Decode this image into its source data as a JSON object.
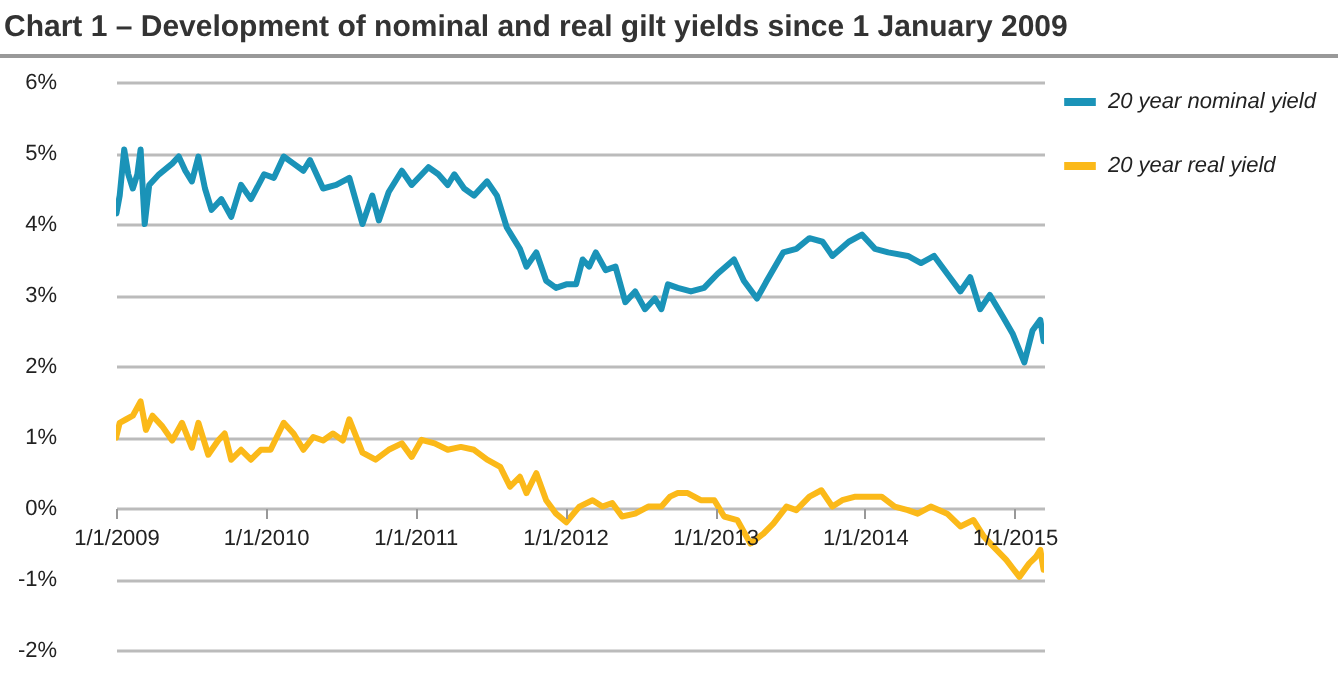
{
  "chart_data": {
    "type": "line",
    "title": "Chart 1 – Development of nominal and real gilt yields since 1 January 2009",
    "xlim": [
      "2009-01-01",
      "2015-03-14"
    ],
    "xticks": [
      {
        "value": "2009-01-01",
        "label": "1/1/2009"
      },
      {
        "value": "2010-01-01",
        "label": "1/1/2010"
      },
      {
        "value": "2011-01-01",
        "label": "1/1/2011"
      },
      {
        "value": "2012-01-01",
        "label": "1/1/2012"
      },
      {
        "value": "2013-01-01",
        "label": "1/1/2013"
      },
      {
        "value": "2014-01-01",
        "label": "1/1/2014"
      },
      {
        "value": "2015-01-01",
        "label": "1/1/2015"
      }
    ],
    "ylim": [
      -2,
      6
    ],
    "yticks": [
      {
        "value": -2,
        "label": "-2%"
      },
      {
        "value": -1,
        "label": "-1%"
      },
      {
        "value": 0,
        "label": "0%"
      },
      {
        "value": 1,
        "label": "1%"
      },
      {
        "value": 2,
        "label": "2%"
      },
      {
        "value": 3,
        "label": "3%"
      },
      {
        "value": 4,
        "label": "4%"
      },
      {
        "value": 5,
        "label": "5%"
      },
      {
        "value": 6,
        "label": "6%"
      }
    ],
    "grid": "y",
    "legend": "top right",
    "line_style": "solid",
    "series": [
      {
        "name": "20 year nominal yield",
        "color": "#1a93b8",
        "x": [
          "2009-01-02",
          "2009-01-10",
          "2009-01-21",
          "2009-01-31",
          "2009-02-11",
          "2009-02-22",
          "2009-03-02",
          "2009-03-12",
          "2009-03-23",
          "2009-04-16",
          "2009-05-18",
          "2009-06-03",
          "2009-06-19",
          "2009-07-05",
          "2009-07-21",
          "2009-08-06",
          "2009-08-22",
          "2009-09-15",
          "2009-10-09",
          "2009-11-02",
          "2009-11-26",
          "2009-12-28",
          "2010-01-21",
          "2010-02-14",
          "2010-03-10",
          "2010-04-03",
          "2010-04-19",
          "2010-05-21",
          "2010-06-22",
          "2010-07-24",
          "2010-08-25",
          "2010-09-18",
          "2010-10-04",
          "2010-10-28",
          "2010-11-29",
          "2010-12-23",
          "2011-02-02",
          "2011-02-26",
          "2011-03-21",
          "2011-04-06",
          "2011-04-30",
          "2011-05-24",
          "2011-06-25",
          "2011-07-19",
          "2011-08-12",
          "2011-09-13",
          "2011-09-29",
          "2011-10-23",
          "2011-11-16",
          "2011-12-10",
          "2012-01-04",
          "2012-01-28",
          "2012-02-13",
          "2012-02-29",
          "2012-03-16",
          "2012-04-09",
          "2012-05-03",
          "2012-05-27",
          "2012-06-20",
          "2012-07-14",
          "2012-08-07",
          "2012-08-23",
          "2012-09-08",
          "2012-10-02",
          "2012-11-03",
          "2012-12-05",
          "2013-01-07",
          "2013-02-16",
          "2013-03-12",
          "2013-04-13",
          "2013-05-07",
          "2013-06-16",
          "2013-07-18",
          "2013-08-19",
          "2013-09-20",
          "2013-10-14",
          "2013-11-23",
          "2013-12-25",
          "2014-01-26",
          "2014-02-27",
          "2014-04-16",
          "2014-05-18",
          "2014-06-19",
          "2014-07-21",
          "2014-08-22",
          "2014-09-15",
          "2014-10-09",
          "2014-11-02",
          "2014-12-03",
          "2014-12-28",
          "2015-01-25",
          "2015-02-14",
          "2015-03-05",
          "2015-03-13"
        ],
        "values": [
          4.15,
          4.4,
          5.05,
          4.7,
          4.5,
          4.7,
          5.05,
          4.0,
          4.55,
          4.7,
          4.85,
          4.95,
          4.75,
          4.6,
          4.95,
          4.5,
          4.2,
          4.35,
          4.1,
          4.55,
          4.35,
          4.7,
          4.65,
          4.95,
          4.85,
          4.75,
          4.9,
          4.5,
          4.55,
          4.65,
          4.0,
          4.4,
          4.05,
          4.45,
          4.75,
          4.55,
          4.8,
          4.7,
          4.55,
          4.7,
          4.5,
          4.4,
          4.6,
          4.4,
          3.95,
          3.65,
          3.4,
          3.6,
          3.2,
          3.1,
          3.15,
          3.15,
          3.5,
          3.4,
          3.6,
          3.35,
          3.4,
          2.9,
          3.05,
          2.8,
          2.95,
          2.8,
          3.15,
          3.1,
          3.05,
          3.1,
          3.3,
          3.5,
          3.2,
          2.95,
          3.2,
          3.6,
          3.65,
          3.8,
          3.75,
          3.55,
          3.75,
          3.85,
          3.65,
          3.6,
          3.55,
          3.45,
          3.55,
          3.3,
          3.05,
          3.25,
          2.8,
          3.0,
          2.7,
          2.45,
          2.05,
          2.5,
          2.65,
          2.35
        ]
      },
      {
        "name": "20 year real yield",
        "color": "#fbb919",
        "x": [
          "2009-01-01",
          "2009-01-10",
          "2009-01-26",
          "2009-02-11",
          "2009-03-02",
          "2009-03-15",
          "2009-03-31",
          "2009-04-24",
          "2009-05-18",
          "2009-06-11",
          "2009-07-05",
          "2009-07-21",
          "2009-08-14",
          "2009-09-07",
          "2009-09-23",
          "2009-10-09",
          "2009-11-02",
          "2009-11-26",
          "2009-12-20",
          "2010-01-13",
          "2010-02-14",
          "2010-03-10",
          "2010-04-03",
          "2010-04-27",
          "2010-05-21",
          "2010-06-14",
          "2010-07-08",
          "2010-07-24",
          "2010-08-25",
          "2010-09-26",
          "2010-10-28",
          "2010-11-29",
          "2010-12-23",
          "2011-01-16",
          "2011-02-17",
          "2011-03-21",
          "2011-04-22",
          "2011-05-24",
          "2011-06-25",
          "2011-07-27",
          "2011-08-20",
          "2011-09-13",
          "2011-09-29",
          "2011-10-23",
          "2011-11-16",
          "2011-12-10",
          "2012-01-04",
          "2012-02-05",
          "2012-03-08",
          "2012-04-01",
          "2012-04-25",
          "2012-05-19",
          "2012-06-20",
          "2012-07-22",
          "2012-08-23",
          "2012-09-13",
          "2012-10-02",
          "2012-10-26",
          "2012-11-27",
          "2012-12-30",
          "2013-01-23",
          "2013-02-24",
          "2013-03-28",
          "2013-04-29",
          "2013-05-23",
          "2013-06-24",
          "2013-07-18",
          "2013-08-19",
          "2013-09-17",
          "2013-10-14",
          "2013-11-07",
          "2013-12-09",
          "2014-01-10",
          "2014-02-11",
          "2014-03-15",
          "2014-04-16",
          "2014-05-10",
          "2014-06-11",
          "2014-07-21",
          "2014-08-22",
          "2014-09-23",
          "2014-10-18",
          "2014-11-10",
          "2014-12-12",
          "2015-01-13",
          "2015-02-06",
          "2015-02-22",
          "2015-03-05",
          "2015-03-13"
        ],
        "values": [
          0.99,
          1.2,
          1.25,
          1.3,
          1.5,
          1.1,
          1.3,
          1.15,
          0.95,
          1.2,
          0.85,
          1.2,
          0.75,
          0.95,
          1.05,
          0.68,
          0.82,
          0.68,
          0.82,
          0.82,
          1.2,
          1.05,
          0.82,
          1.0,
          0.95,
          1.05,
          0.95,
          1.25,
          0.78,
          0.68,
          0.82,
          0.91,
          0.72,
          0.96,
          0.91,
          0.82,
          0.86,
          0.82,
          0.68,
          0.58,
          0.3,
          0.44,
          0.21,
          0.49,
          0.11,
          -0.08,
          -0.2,
          0.02,
          0.11,
          0.02,
          0.07,
          -0.12,
          -0.08,
          0.02,
          0.02,
          0.16,
          0.21,
          0.21,
          0.11,
          0.11,
          -0.12,
          -0.17,
          -0.5,
          -0.36,
          -0.22,
          0.02,
          -0.03,
          0.16,
          0.25,
          0.02,
          0.11,
          0.16,
          0.16,
          0.16,
          0.02,
          -0.03,
          -0.08,
          0.02,
          -0.08,
          -0.26,
          -0.17,
          -0.4,
          -0.54,
          -0.73,
          -0.97,
          -0.78,
          -0.69,
          -0.59,
          -0.87
        ]
      }
    ]
  }
}
